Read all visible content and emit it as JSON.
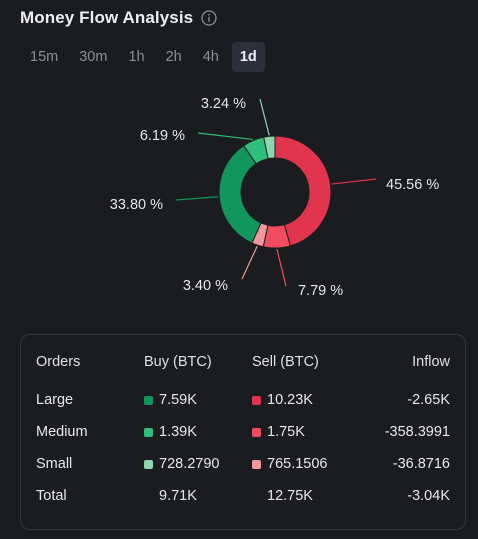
{
  "header": {
    "title": "Money Flow Analysis",
    "info_icon": "info-circle-icon"
  },
  "tabs": [
    {
      "label": "15m",
      "active": false
    },
    {
      "label": "30m",
      "active": false
    },
    {
      "label": "1h",
      "active": false
    },
    {
      "label": "2h",
      "active": false
    },
    {
      "label": "4h",
      "active": false
    },
    {
      "label": "1d",
      "active": true
    }
  ],
  "chart_data": {
    "type": "pie",
    "variant": "donut",
    "slices": [
      {
        "label": "45.56 %",
        "value": 45.56,
        "color": "#e0344f"
      },
      {
        "label": "7.79 %",
        "value": 7.79,
        "color": "#f04d60"
      },
      {
        "label": "3.40 %",
        "value": 3.4,
        "color": "#f0979e"
      },
      {
        "label": "33.80 %",
        "value": 33.8,
        "color": "#13965e"
      },
      {
        "label": "6.19 %",
        "value": 6.19,
        "color": "#2fbe7b"
      },
      {
        "label": "3.24 %",
        "value": 3.24,
        "color": "#8ed6ae"
      }
    ]
  },
  "table": {
    "headers": {
      "orders": "Orders",
      "buy": "Buy (BTC)",
      "sell": "Sell (BTC)",
      "inflow": "Inflow"
    },
    "rows": [
      {
        "orders": "Large",
        "buy": "7.59K",
        "sell": "10.23K",
        "inflow": "-2.65K",
        "buy_color": "#13965e",
        "sell_color": "#e0344f"
      },
      {
        "orders": "Medium",
        "buy": "1.39K",
        "sell": "1.75K",
        "inflow": "-358.3991",
        "buy_color": "#2fbe7b",
        "sell_color": "#f04d60"
      },
      {
        "orders": "Small",
        "buy": "728.2790",
        "sell": "765.1506",
        "inflow": "-36.8716",
        "buy_color": "#8ed6ae",
        "sell_color": "#f0979e"
      }
    ],
    "total": {
      "orders": "Total",
      "buy": "9.71K",
      "sell": "12.75K",
      "inflow": "-3.04K"
    }
  }
}
